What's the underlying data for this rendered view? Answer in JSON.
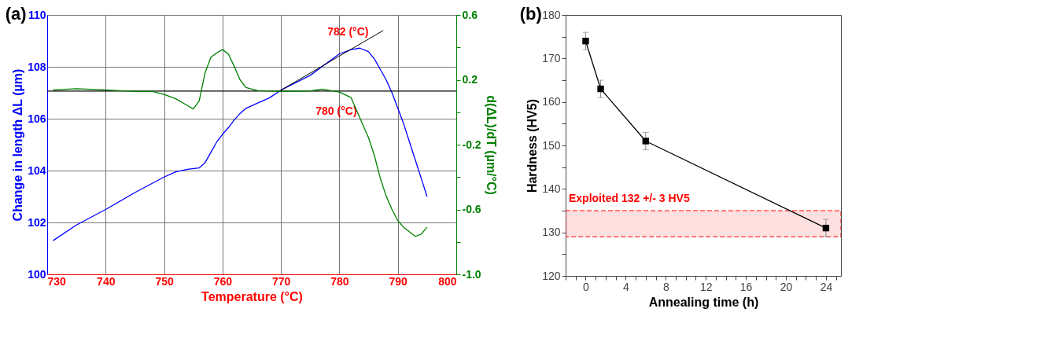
{
  "chart_data": [
    {
      "type": "line",
      "title": "(a)",
      "xlabel": "Temperature (°C)",
      "ylabel": "Change in length ΔL (µm)",
      "y2label": "d(ΔL)/dT (µm/°C)",
      "xlim": [
        730,
        800
      ],
      "xticks": [
        730,
        740,
        750,
        760,
        770,
        780,
        790,
        800
      ],
      "ylim": [
        100,
        110
      ],
      "yticks": [
        100,
        102,
        104,
        106,
        108,
        110
      ],
      "y2lim": [
        -1.0,
        0.6
      ],
      "y2ticks": [
        {
          "value": -1.0,
          "label": "-1.0"
        },
        {
          "value": -0.8,
          "label": null
        },
        -0.6,
        {
          "value": -0.4,
          "label": null
        },
        -0.2,
        {
          "value": 0,
          "label": null
        },
        0.2,
        {
          "value": 0.4,
          "label": null
        },
        0.6
      ],
      "grid": true,
      "series": [
        {
          "color": "#0000ff",
          "x": [
            731,
            735,
            740,
            745,
            750,
            752,
            754,
            756,
            757,
            758,
            759,
            760,
            761,
            762,
            763,
            764,
            766,
            768,
            770,
            775,
            780,
            782,
            783.5,
            785,
            786,
            787,
            788,
            789,
            790,
            791,
            792,
            793,
            794,
            795
          ],
          "values": [
            101.3,
            101.9,
            102.5,
            103.15,
            103.75,
            103.95,
            104.05,
            104.1,
            104.3,
            104.7,
            105.1,
            105.4,
            105.65,
            105.95,
            106.2,
            106.4,
            106.6,
            106.8,
            107.1,
            107.67,
            108.5,
            108.66,
            108.72,
            108.58,
            108.3,
            107.9,
            107.5,
            107.0,
            106.4,
            105.8,
            105.1,
            104.4,
            103.7,
            103.0
          ]
        },
        {
          "color": "#008000",
          "axis": "y2",
          "x": [
            731,
            735,
            740,
            745,
            748,
            750,
            752,
            754,
            755,
            756,
            757,
            758,
            759,
            760,
            761,
            762,
            763,
            764,
            766,
            770,
            775,
            777,
            780,
            782,
            783,
            784,
            785,
            786,
            787,
            788,
            789,
            790,
            791,
            792,
            793,
            794,
            795
          ],
          "values": [
            0.138,
            0.145,
            0.138,
            0.128,
            0.128,
            0.11,
            0.083,
            0.041,
            0.02,
            0.069,
            0.241,
            0.338,
            0.366,
            0.386,
            0.359,
            0.283,
            0.2,
            0.152,
            0.134,
            0.128,
            0.131,
            0.142,
            0.124,
            0.09,
            0.007,
            -0.076,
            -0.159,
            -0.269,
            -0.407,
            -0.517,
            -0.6,
            -0.669,
            -0.71,
            -0.738,
            -0.766,
            -0.752,
            -0.71
          ]
        },
        {
          "type": "line",
          "color": "#000000",
          "x": [
            770,
            787.5
          ],
          "values": [
            107.1,
            109.4
          ]
        }
      ],
      "ref_lines": [
        {
          "axis": "y2",
          "value": 0.13,
          "color": "#000000"
        }
      ],
      "annotations": [
        {
          "text": "782 (°C)",
          "x": 782,
          "y": 108.66
        },
        {
          "text": "780 (°C)",
          "x": 780,
          "y": 107.0
        }
      ]
    },
    {
      "type": "line",
      "title": "(b)",
      "xlabel": "Annealing time (h)",
      "ylabel": "Hardness (HV5)",
      "xlim": [
        -2,
        25.5
      ],
      "xticks": [
        {
          "value": -2,
          "label": null
        },
        {
          "value": -1,
          "label": null
        },
        0,
        {
          "value": 1,
          "label": null
        },
        {
          "value": 2,
          "label": null
        },
        {
          "value": 3,
          "label": null
        },
        4,
        {
          "value": 5,
          "label": null
        },
        {
          "value": 6,
          "label": null
        },
        {
          "value": 7,
          "label": null
        },
        8,
        {
          "value": 9,
          "label": null
        },
        {
          "value": 10,
          "label": null
        },
        {
          "value": 11,
          "label": null
        },
        12,
        {
          "value": 13,
          "label": null
        },
        {
          "value": 14,
          "label": null
        },
        {
          "value": 15,
          "label": null
        },
        16,
        {
          "value": 17,
          "label": null
        },
        {
          "value": 18,
          "label": null
        },
        {
          "value": 19,
          "label": null
        },
        20,
        {
          "value": 21,
          "label": null
        },
        {
          "value": 22,
          "label": null
        },
        {
          "value": 23,
          "label": null
        },
        24,
        {
          "value": 25,
          "label": null
        }
      ],
      "ylim": [
        120,
        180
      ],
      "yticks": [
        120,
        {
          "value": 125,
          "label": null
        },
        130,
        {
          "value": 135,
          "label": null
        },
        140,
        {
          "value": 145,
          "label": null
        },
        150,
        {
          "value": 155,
          "label": null
        },
        160,
        {
          "value": 165,
          "label": null
        },
        170,
        {
          "value": 175,
          "label": null
        },
        180
      ],
      "marker": "square",
      "series": [
        {
          "color": "#000000",
          "x": [
            0,
            1.5,
            6,
            24
          ],
          "values": [
            174,
            163,
            151,
            131
          ],
          "errors": [
            2,
            2,
            2,
            2
          ]
        }
      ],
      "bands": [
        {
          "axis": "y",
          "from": 129,
          "to": 135,
          "label": "Exploited 132 +/- 3 HV5",
          "color": "#ff0000"
        }
      ]
    }
  ]
}
